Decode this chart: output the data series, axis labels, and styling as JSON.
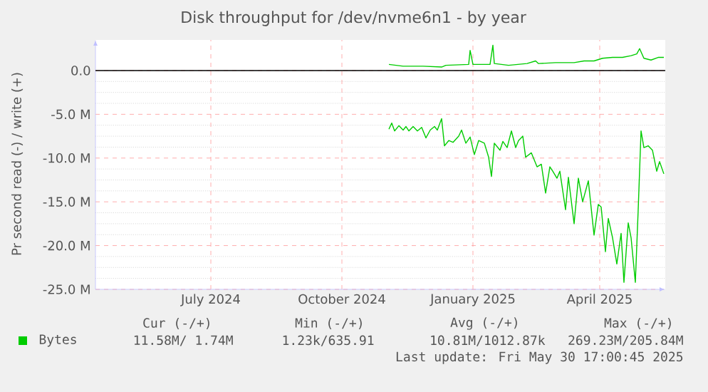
{
  "chart_data": {
    "type": "line",
    "title": "Disk throughput for /dev/nvme6n1 - by year",
    "ylabel": "Pr second read (-) / write (+)",
    "xlim": [
      "2024-04-26",
      "2025-05-31"
    ],
    "xticks": [
      {
        "value": "2024-07-16",
        "label": "July 2024"
      },
      {
        "value": "2024-10-16",
        "label": "October 2024"
      },
      {
        "value": "2025-01-16",
        "label": "January 2025"
      },
      {
        "value": "2025-04-15",
        "label": "April 2025"
      }
    ],
    "ylim": [
      -25,
      3.5
    ],
    "yticks": [
      {
        "value": -25,
        "label": "-25.0 M"
      },
      {
        "value": -20,
        "label": "-20.0 M"
      },
      {
        "value": -15,
        "label": "-15.0 M"
      },
      {
        "value": -10,
        "label": "-10.0 M"
      },
      {
        "value": -5,
        "label": "-5.0 M"
      },
      {
        "value": 0,
        "label": "0.0"
      }
    ],
    "grid": true,
    "legend": "bottom left",
    "ref_lines": [
      {
        "axis": "y",
        "value": 0,
        "color": "#000000"
      }
    ],
    "series": [
      {
        "name": "Bytes",
        "color": "#00cc00",
        "x": [
          "2024-11-18",
          "2024-11-28",
          "2024-12-12",
          "2024-12-25",
          "2024-12-28",
          "2025-01-13",
          "2025-01-14",
          "2025-01-16",
          "2025-01-28",
          "2025-01-30",
          "2025-01-31",
          "2025-02-10",
          "2025-02-23",
          "2025-03-01",
          "2025-03-03",
          "2025-03-15",
          "2025-03-28",
          "2025-04-04",
          "2025-04-11",
          "2025-04-17",
          "2025-04-24",
          "2025-05-01",
          "2025-05-07",
          "2025-05-11",
          "2025-05-13",
          "2025-05-16",
          "2025-05-21",
          "2025-05-26",
          "2025-05-30"
        ],
        "values": [
          0.7,
          0.5,
          0.5,
          0.4,
          0.6,
          0.7,
          2.3,
          0.7,
          0.7,
          2.9,
          0.8,
          0.6,
          0.8,
          1.1,
          0.8,
          0.9,
          0.9,
          1.1,
          1.1,
          1.4,
          1.5,
          1.5,
          1.7,
          1.9,
          2.5,
          1.4,
          1.2,
          1.5,
          1.5
        ]
      },
      {
        "color": "#00cc00",
        "x": [
          "2024-11-18",
          "2024-11-20",
          "2024-11-22",
          "2024-11-25",
          "2024-11-28",
          "2024-11-30",
          "2024-12-02",
          "2024-12-05",
          "2024-12-08",
          "2024-12-11",
          "2024-12-14",
          "2024-12-17",
          "2024-12-20",
          "2024-12-22",
          "2024-12-25",
          "2024-12-27",
          "2024-12-30",
          "2025-01-02",
          "2025-01-06",
          "2025-01-08",
          "2025-01-11",
          "2025-01-14",
          "2025-01-17",
          "2025-01-20",
          "2025-01-24",
          "2025-01-27",
          "2025-01-29",
          "2025-01-31",
          "2025-02-04",
          "2025-02-06",
          "2025-02-09",
          "2025-02-12",
          "2025-02-15",
          "2025-02-17",
          "2025-02-20",
          "2025-02-22",
          "2025-02-26",
          "2025-03-02",
          "2025-03-05",
          "2025-03-08",
          "2025-03-11",
          "2025-03-13",
          "2025-03-16",
          "2025-03-18",
          "2025-03-22",
          "2025-03-24",
          "2025-03-28",
          "2025-03-31",
          "2025-04-03",
          "2025-04-07",
          "2025-04-11",
          "2025-04-14",
          "2025-04-16",
          "2025-04-19",
          "2025-04-21",
          "2025-04-24",
          "2025-04-27",
          "2025-04-30",
          "2025-05-02",
          "2025-05-05",
          "2025-05-07",
          "2025-05-10",
          "2025-05-12",
          "2025-05-14",
          "2025-05-16",
          "2025-05-19",
          "2025-05-22",
          "2025-05-25",
          "2025-05-27",
          "2025-05-30"
        ],
        "values": [
          -6.7,
          -6.0,
          -6.9,
          -6.3,
          -6.8,
          -6.4,
          -6.9,
          -6.4,
          -6.9,
          -6.5,
          -7.7,
          -6.8,
          -6.4,
          -6.8,
          -5.5,
          -8.6,
          -8.0,
          -8.2,
          -7.5,
          -6.8,
          -8.3,
          -7.6,
          -9.6,
          -8.0,
          -8.3,
          -9.9,
          -12.1,
          -8.3,
          -9.1,
          -8.1,
          -8.8,
          -6.9,
          -8.8,
          -8.0,
          -7.5,
          -9.9,
          -9.4,
          -11.0,
          -10.7,
          -14.0,
          -11.0,
          -11.5,
          -12.3,
          -11.5,
          -15.9,
          -12.2,
          -17.5,
          -12.3,
          -15.0,
          -12.6,
          -18.8,
          -15.3,
          -15.6,
          -20.7,
          -16.9,
          -19.1,
          -22.1,
          -18.6,
          -24.2,
          -17.4,
          -19.1,
          -24.2,
          -15.9,
          -6.9,
          -8.8,
          -8.6,
          -9.1,
          -11.5,
          -10.4,
          -11.8
        ]
      }
    ],
    "annotations": [
      "Cur (-/+)",
      "Min (-/+)",
      "Avg (-/+)",
      "Max (-/+)",
      "11.58M/ 1.74M",
      "1.23k/635.91",
      "10.81M/1012.87k",
      "269.23M/205.84M",
      "Last update: Fri May 30 17:00:45 2025"
    ]
  }
}
